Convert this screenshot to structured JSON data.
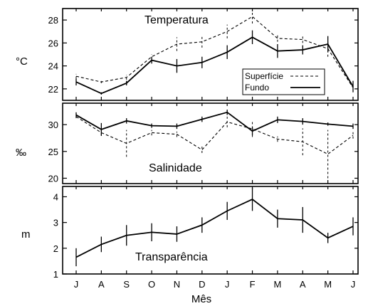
{
  "chart_data": [
    {
      "type": "line",
      "title": "Temperatura",
      "ylabel": "°C",
      "xlabel": "",
      "ylim": [
        21,
        29
      ],
      "yticks": [
        22,
        24,
        26,
        28
      ],
      "categories": [
        "J",
        "A",
        "S",
        "O",
        "N",
        "D",
        "J",
        "F",
        "M",
        "A",
        "M",
        "J"
      ],
      "legend": {
        "placement": "bottom-right",
        "entries": [
          {
            "label": "Superfície",
            "style": "dashed"
          },
          {
            "label": "Fundo",
            "style": "solid"
          }
        ]
      },
      "series": [
        {
          "name": "Superfície",
          "style": "dashed",
          "values": [
            23.1,
            22.6,
            23.0,
            24.8,
            25.9,
            26.1,
            27.0,
            28.3,
            26.4,
            26.3,
            25.5,
            22.1
          ],
          "errors": [
            0.2,
            0.1,
            0.2,
            0.2,
            0.6,
            0.5,
            0.6,
            0.6,
            0.3,
            0.3,
            0.7,
            0.3
          ]
        },
        {
          "name": "Fundo",
          "style": "solid",
          "values": [
            22.6,
            21.6,
            22.5,
            24.5,
            24.0,
            24.3,
            25.2,
            26.5,
            25.3,
            25.4,
            25.9,
            22.2
          ],
          "errors": [
            0.3,
            0.1,
            0.2,
            0.3,
            0.6,
            0.5,
            0.6,
            0.6,
            0.6,
            0.4,
            0.7,
            0.5
          ]
        }
      ]
    },
    {
      "type": "line",
      "title": "Salinidade",
      "ylabel": "‰",
      "xlabel": "",
      "ylim": [
        19,
        34
      ],
      "yticks": [
        20,
        25,
        30
      ],
      "categories": [
        "J",
        "A",
        "S",
        "O",
        "N",
        "D",
        "J",
        "F",
        "M",
        "A",
        "M",
        "J"
      ],
      "series": [
        {
          "name": "Superfície",
          "style": "dashed",
          "values": [
            31.5,
            28.5,
            26.5,
            28.5,
            28.2,
            25.3,
            30.5,
            29.2,
            27.3,
            26.8,
            24.5,
            28.0
          ],
          "errors": [
            0.3,
            0.5,
            2.5,
            0.5,
            0.5,
            0.6,
            1.0,
            1.5,
            0.5,
            2.5,
            4.5,
            0.6
          ]
        },
        {
          "name": "Fundo",
          "style": "solid",
          "values": [
            31.8,
            29.1,
            30.7,
            29.8,
            29.7,
            31.0,
            32.3,
            28.8,
            30.9,
            30.6,
            30.1,
            29.7
          ],
          "errors": [
            0.5,
            1.2,
            0.5,
            0.4,
            0.5,
            0.5,
            0.5,
            0.8,
            0.6,
            0.6,
            0.3,
            0.5
          ]
        }
      ]
    },
    {
      "type": "line",
      "title": "Transparência",
      "ylabel": "m",
      "xlabel": "Mês",
      "ylim": [
        1,
        4.4
      ],
      "yticks": [
        1,
        2,
        3,
        4
      ],
      "categories": [
        "J",
        "A",
        "S",
        "O",
        "N",
        "D",
        "J",
        "F",
        "M",
        "A",
        "M",
        "J"
      ],
      "series": [
        {
          "name": "Fundo",
          "style": "solid",
          "values": [
            1.65,
            2.15,
            2.5,
            2.62,
            2.55,
            2.9,
            3.45,
            3.9,
            3.15,
            3.1,
            2.4,
            2.85
          ],
          "errors": [
            0.35,
            0.3,
            0.4,
            0.35,
            0.3,
            0.3,
            0.35,
            0.45,
            0.35,
            0.5,
            0.2,
            0.35
          ]
        }
      ]
    }
  ]
}
